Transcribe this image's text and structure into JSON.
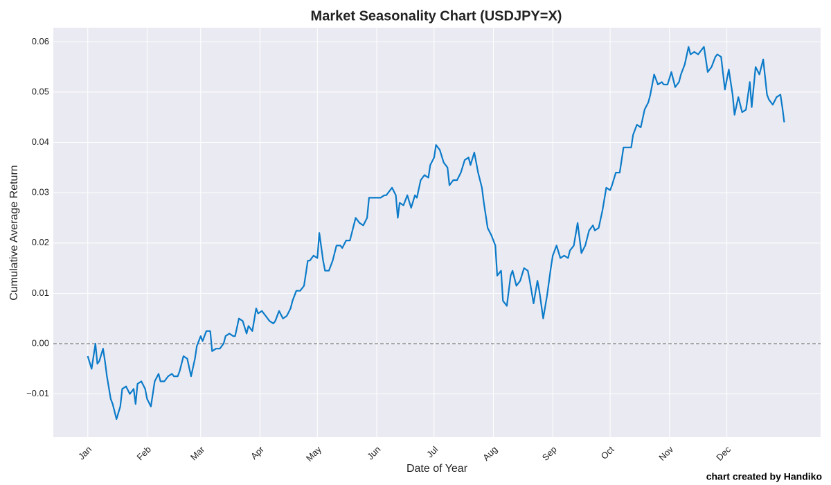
{
  "chart_data": {
    "type": "line",
    "title": "Market Seasonality Chart (USDJPY=X)",
    "xlabel": "Date of Year",
    "ylabel": "Cumulative Average Return",
    "credit": "chart created by Handiko",
    "grid": true,
    "hline": 0,
    "xlim": [
      -17,
      384
    ],
    "ylim": [
      -0.0186,
      0.0628
    ],
    "xticks": [
      {
        "value": 1,
        "label": "Jan"
      },
      {
        "value": 32,
        "label": "Feb"
      },
      {
        "value": 60,
        "label": "Mar"
      },
      {
        "value": 91,
        "label": "Apr"
      },
      {
        "value": 121,
        "label": "May"
      },
      {
        "value": 152,
        "label": "Jun"
      },
      {
        "value": 182,
        "label": "Jul"
      },
      {
        "value": 213,
        "label": "Aug"
      },
      {
        "value": 244,
        "label": "Sep"
      },
      {
        "value": 274,
        "label": "Oct"
      },
      {
        "value": 305,
        "label": "Nov"
      },
      {
        "value": 335,
        "label": "Dec"
      }
    ],
    "yticks": [
      {
        "value": -0.01,
        "label": "−0.01"
      },
      {
        "value": 0,
        "label": "0.00"
      },
      0.01,
      0.02,
      0.03,
      0.04,
      0.05,
      0.06
    ],
    "x": [
      1,
      3,
      5,
      6,
      7,
      9,
      10,
      11,
      13,
      14,
      16,
      18,
      19,
      21,
      23,
      25,
      26,
      27,
      29,
      31,
      32,
      34,
      36,
      38,
      39,
      41,
      43,
      45,
      46,
      48,
      49,
      51,
      53,
      55,
      57,
      58,
      60,
      61,
      63,
      65,
      66,
      68,
      70,
      72,
      73,
      75,
      77,
      78,
      80,
      82,
      84,
      85,
      87,
      89,
      90,
      92,
      94,
      96,
      98,
      99,
      101,
      103,
      105,
      107,
      108,
      110,
      112,
      114,
      116,
      117,
      119,
      121,
      122,
      124,
      125,
      127,
      129,
      131,
      133,
      134,
      136,
      138,
      140,
      141,
      143,
      145,
      147,
      148,
      150,
      152,
      154,
      156,
      157,
      160,
      162,
      163,
      164,
      166,
      168,
      170,
      172,
      173,
      175,
      177,
      179,
      180,
      182,
      183,
      185,
      187,
      189,
      190,
      192,
      194,
      196,
      198,
      200,
      201,
      203,
      205,
      207,
      208,
      210,
      212,
      214,
      215,
      217,
      218,
      220,
      222,
      223,
      225,
      227,
      229,
      231,
      232,
      234,
      236,
      237,
      239,
      241,
      243,
      244,
      246,
      248,
      250,
      252,
      253,
      255,
      257,
      259,
      261,
      263,
      265,
      266,
      268,
      270,
      272,
      274,
      275,
      277,
      279,
      281,
      283,
      285,
      286,
      288,
      290,
      292,
      294,
      295,
      297,
      299,
      301,
      302,
      304,
      306,
      308,
      310,
      311,
      313,
      315,
      316,
      318,
      320,
      321,
      323,
      325,
      327,
      329,
      330,
      332,
      334,
      336,
      338,
      339,
      341,
      343,
      345,
      347,
      348,
      350,
      352,
      354,
      356,
      357,
      359,
      361,
      363,
      364,
      365
    ],
    "series": [
      {
        "name": "Cumulative Average Return",
        "color": "#0b7bc9",
        "values": [
          -0.0025,
          -0.005,
          0.0,
          -0.004,
          -0.0035,
          -0.001,
          -0.0035,
          -0.0065,
          -0.011,
          -0.012,
          -0.015,
          -0.0125,
          -0.009,
          -0.0085,
          -0.01,
          -0.009,
          -0.012,
          -0.008,
          -0.0075,
          -0.009,
          -0.011,
          -0.0125,
          -0.0075,
          -0.006,
          -0.0075,
          -0.0075,
          -0.0065,
          -0.006,
          -0.0065,
          -0.0065,
          -0.0055,
          -0.0025,
          -0.003,
          -0.0065,
          -0.003,
          -0.0005,
          0.0015,
          0.0005,
          0.0025,
          0.0025,
          -0.0015,
          -0.001,
          -0.001,
          0.0,
          0.0015,
          0.002,
          0.0015,
          0.0015,
          0.005,
          0.0045,
          0.002,
          0.0035,
          0.0025,
          0.007,
          0.006,
          0.0065,
          0.0055,
          0.0045,
          0.004,
          0.0045,
          0.0065,
          0.005,
          0.0055,
          0.007,
          0.0085,
          0.0105,
          0.0105,
          0.0115,
          0.0165,
          0.0165,
          0.0175,
          0.017,
          0.022,
          0.0165,
          0.0145,
          0.0145,
          0.0165,
          0.0195,
          0.0195,
          0.019,
          0.0205,
          0.0205,
          0.0235,
          0.025,
          0.024,
          0.0235,
          0.025,
          0.029,
          0.029,
          0.029,
          0.029,
          0.0295,
          0.0295,
          0.031,
          0.0295,
          0.025,
          0.028,
          0.0275,
          0.0295,
          0.027,
          0.0295,
          0.029,
          0.0325,
          0.0335,
          0.033,
          0.0355,
          0.037,
          0.0395,
          0.0385,
          0.036,
          0.035,
          0.0315,
          0.0325,
          0.0325,
          0.034,
          0.0365,
          0.037,
          0.0355,
          0.038,
          0.034,
          0.031,
          0.028,
          0.023,
          0.0215,
          0.0195,
          0.0135,
          0.0145,
          0.0085,
          0.0075,
          0.0135,
          0.0145,
          0.0115,
          0.0125,
          0.015,
          0.0145,
          0.0125,
          0.008,
          0.0125,
          0.0105,
          0.005,
          0.0095,
          0.015,
          0.0175,
          0.0195,
          0.017,
          0.0175,
          0.017,
          0.0185,
          0.0195,
          0.024,
          0.018,
          0.0195,
          0.0225,
          0.0235,
          0.0225,
          0.023,
          0.0265,
          0.031,
          0.0305,
          0.0315,
          0.034,
          0.034,
          0.039,
          0.039,
          0.039,
          0.0415,
          0.0435,
          0.043,
          0.0465,
          0.048,
          0.0495,
          0.0535,
          0.0515,
          0.052,
          0.0515,
          0.0515,
          0.054,
          0.051,
          0.052,
          0.0535,
          0.0555,
          0.059,
          0.0575,
          0.058,
          0.0575,
          0.058,
          0.059,
          0.054,
          0.055,
          0.057,
          0.0575,
          0.057,
          0.0505,
          0.0545,
          0.0495,
          0.0455,
          0.049,
          0.046,
          0.0465,
          0.052,
          0.047,
          0.055,
          0.0535,
          0.0565,
          0.0495,
          0.0485,
          0.0475,
          0.049,
          0.0495,
          0.047,
          0.044
        ]
      }
    ]
  }
}
